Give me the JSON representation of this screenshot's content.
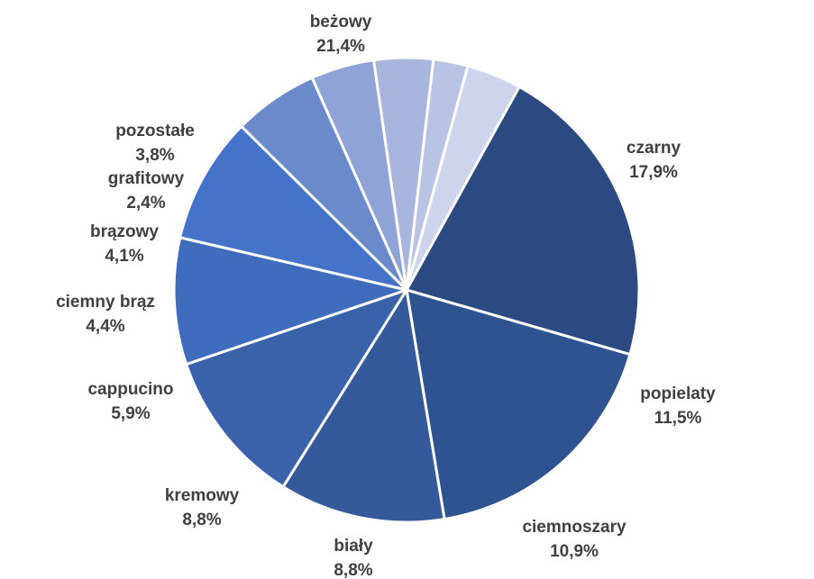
{
  "chart_data": {
    "type": "pie",
    "title": "",
    "slices": [
      {
        "label": "beżowy",
        "value_label": "21,4%",
        "value": 21.4,
        "color": "#2B4A82"
      },
      {
        "label": "czarny",
        "value_label": "17,9%",
        "value": 17.9,
        "color": "#2F5290"
      },
      {
        "label": "popielaty",
        "value_label": "11,5%",
        "value": 11.5,
        "color": "#345A9C"
      },
      {
        "label": "ciemnoszary",
        "value_label": "10,9%",
        "value": 10.9,
        "color": "#3A62AA"
      },
      {
        "label": "biały",
        "value_label": "8,8%",
        "value": 8.8,
        "color": "#3F6CBC"
      },
      {
        "label": "kremowy",
        "value_label": "8,8%",
        "value": 8.8,
        "color": "#4673CA"
      },
      {
        "label": "cappucino",
        "value_label": "5,9%",
        "value": 5.9,
        "color": "#6B8ACB"
      },
      {
        "label": "ciemny brąz",
        "value_label": "4,4%",
        "value": 4.4,
        "color": "#8FA3D6"
      },
      {
        "label": "brązowy",
        "value_label": "4,1%",
        "value": 4.1,
        "color": "#A8B6DE"
      },
      {
        "label": "grafitowy",
        "value_label": "2,4%",
        "value": 2.4,
        "color": "#B9C3E4"
      },
      {
        "label": "pozostałe",
        "value_label": "3,8%",
        "value": 3.8,
        "color": "#CDD4EB"
      }
    ]
  }
}
